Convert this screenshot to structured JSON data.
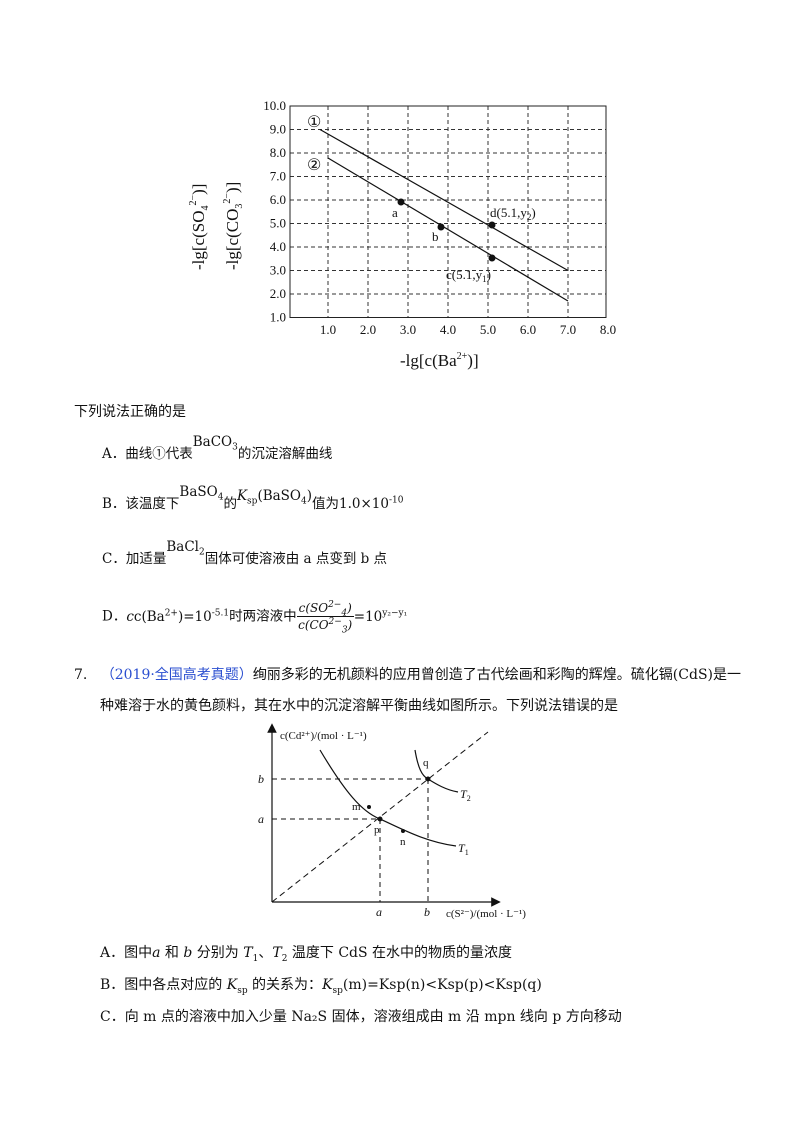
{
  "chart1": {
    "y_ticks": [
      "10.0",
      "9.0",
      "8.0",
      "7.0",
      "6.0",
      "5.0",
      "4.0",
      "3.0",
      "2.0",
      "1.0"
    ],
    "x_ticks": [
      "1.0",
      "2.0",
      "3.0",
      "4.0",
      "5.0",
      "6.0",
      "7.0",
      "8.0"
    ],
    "y_label_1": "-lg[c(SO",
    "y_label_1_sub": "4",
    "y_label_1_sup": "2−",
    "y_label_1_end": ")]",
    "y_label_2": "-lg[c(CO",
    "y_label_2_sub": "3",
    "y_label_2_sup": "2−",
    "y_label_2_end": ")]",
    "x_label": "-lg[c(Ba",
    "x_label_sup": "2+",
    "x_label_end": ")]",
    "line1_marker": "①",
    "line2_marker": "②",
    "point_a": "a",
    "point_b": "b",
    "point_c": "c(5.1,y",
    "point_c_sub": "1",
    "point_c_end": ")",
    "point_d": "d(5.1,y",
    "point_d_sub": "2",
    "point_d_end": ")"
  },
  "q6": {
    "stem": "下列说法正确的是",
    "A_pre": "A．曲线①代表",
    "A_formula": "BaCO",
    "A_formula_sub": "3",
    "A_post": "的沉淀溶解曲线",
    "B_pre": "B．该温度下",
    "B_formula": "BaSO",
    "B_formula_sub": "4",
    "B_mid": "的",
    "B_ksp": "K",
    "B_ksp_sub": "sp",
    "B_ksp_arg": "(BaSO",
    "B_ksp_arg_sub": "4",
    "B_ksp_arg_end": ")",
    "B_value_pre": "值为",
    "B_value": "1.0×10",
    "B_value_sup": "-10",
    "C_pre": "C．加适量",
    "C_formula": "BaCl",
    "C_formula_sub": "2",
    "C_post": "固体可使溶液由 a 点变到 b 点",
    "D_pre": "D．",
    "D_cond": "c(Ba",
    "D_cond_sup": "2+",
    "D_cond_end": ")=10",
    "D_cond_exp": "-5.1",
    "D_mid": "时两溶液中",
    "D_num": "c(SO",
    "D_num_sub": "4",
    "D_num_sup": "2−",
    "D_num_end": ")",
    "D_den": "c(CO",
    "D_den_sub": "3",
    "D_den_sup": "2−",
    "D_den_end": ")",
    "D_eq": "=10",
    "D_eq_sup": "y₂−y₁"
  },
  "q7": {
    "number": "7.",
    "source": "（2019·全国高考真题）",
    "stem_line1": "绚丽多彩的无机颜料的应用曾创造了古代绘画和彩陶的辉煌。硫化镉(CdS)是一",
    "stem_line2": "种难溶于水的黄色颜料，其在水中的沉淀溶解平衡曲线如图所示。下列说法错误的是",
    "chart": {
      "y_axis_label": "c(Cd²⁺)/(mol · L⁻¹)",
      "x_axis_label": "c(S²⁻)/(mol · L⁻¹)",
      "y_b": "b",
      "y_a": "a",
      "x_a": "a",
      "x_b": "b",
      "pt_q": "q",
      "pt_m": "m",
      "pt_p": "p",
      "pt_n": "n",
      "curve_T2": "T",
      "curve_T2_sub": "2",
      "curve_T1": "T",
      "curve_T1_sub": "1"
    },
    "A_pre": "A．图中",
    "A_a": "a",
    "A_and": " 和 ",
    "A_b": "b",
    "A_mid": " 分别为 ",
    "A_T1": "T",
    "A_T1_sub": "1",
    "A_sep": "、",
    "A_T2": "T",
    "A_T2_sub": "2",
    "A_post": " 温度下 CdS 在水中的物质的量浓度",
    "B_pre": "B．图中各点对应的 ",
    "B_K": "K",
    "B_K_sub": "sp",
    "B_mid": " 的关系为：",
    "B_rel": "K",
    "B_rel_sub": "sp",
    "B_rel_text": "(m)=Ksp(n)<Ksp(p)<Ksp(q)",
    "C_text": "C．向 m 点的溶液中加入少量 Na₂S 固体，溶液组成由 m 沿 mpn 线向 p 方向移动"
  }
}
